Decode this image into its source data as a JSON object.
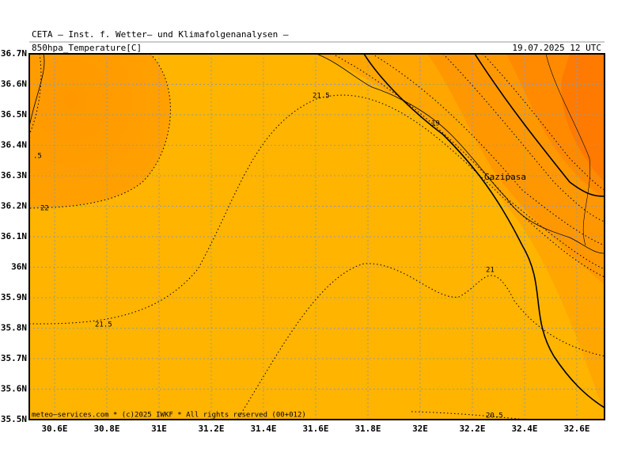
{
  "header": {
    "title": "CETA — Inst. f. Wetter— und Klimafolgenanalysen —",
    "field": "850hpa_Temperature[C]",
    "valid": "19.07.2025 12 UTC"
  },
  "map": {
    "xlim": [
      30.5,
      32.7
    ],
    "ylim": [
      35.5,
      36.7
    ],
    "lat_ticks": [
      {
        "value": 36.7,
        "label": "36.7N"
      },
      {
        "value": 36.6,
        "label": "36.6N"
      },
      {
        "value": 36.5,
        "label": "36.5N"
      },
      {
        "value": 36.4,
        "label": "36.4N"
      },
      {
        "value": 36.3,
        "label": "36.3N"
      },
      {
        "value": 36.2,
        "label": "36.2N"
      },
      {
        "value": 36.1,
        "label": "36.1N"
      },
      {
        "value": 36,
        "label": "36N"
      },
      {
        "value": 35.9,
        "label": "35.9N"
      },
      {
        "value": 35.8,
        "label": "35.8N"
      },
      {
        "value": 35.7,
        "label": "35.7N"
      },
      {
        "value": 35.6,
        "label": "35.6N"
      },
      {
        "value": 35.5,
        "label": "35.5N"
      }
    ],
    "lon_ticks": [
      {
        "value": 30.6,
        "label": "30.6E"
      },
      {
        "value": 30.8,
        "label": "30.8E"
      },
      {
        "value": 31,
        "label": "31E"
      },
      {
        "value": 31.2,
        "label": "31.2E"
      },
      {
        "value": 31.4,
        "label": "31.4E"
      },
      {
        "value": 31.6,
        "label": "31.6E"
      },
      {
        "value": 31.8,
        "label": "31.8E"
      },
      {
        "value": 32,
        "label": "32E"
      },
      {
        "value": 32.2,
        "label": "32.2E"
      },
      {
        "value": 32.4,
        "label": "32.4E"
      },
      {
        "value": 32.6,
        "label": "32.6E"
      }
    ],
    "contour_labels": [
      "21.5",
      "19",
      "22",
      ".5",
      "21.5",
      "21",
      "20.5"
    ],
    "place": "Gazipasa"
  },
  "footer": "meteo—services.com * (c)2025 IWKF * All rights reserved (00+012)"
}
